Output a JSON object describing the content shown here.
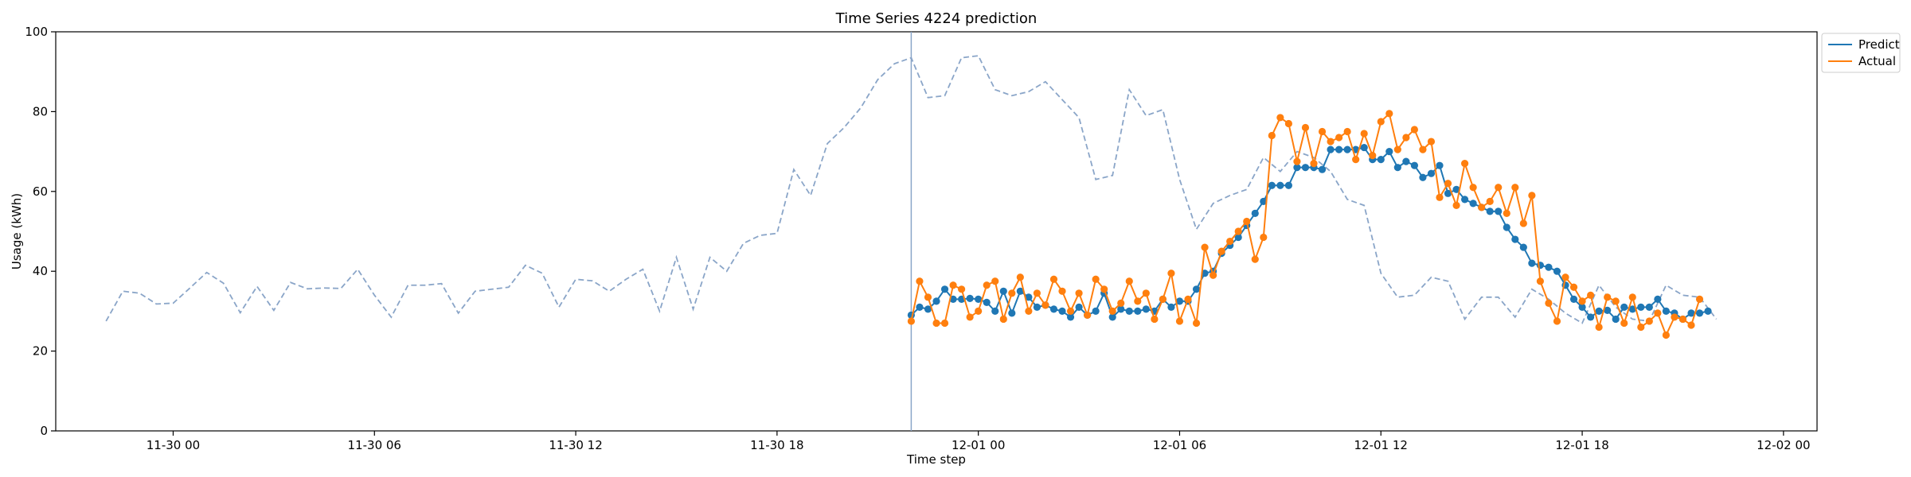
{
  "chart_data": {
    "type": "line",
    "title": "Time Series 4224 prediction",
    "xlabel": "Time step",
    "ylabel": "Usage (kWh)",
    "ylim": [
      0,
      100
    ],
    "yticks": [
      0,
      20,
      40,
      60,
      80,
      100
    ],
    "xlim": [
      "2023-11-29 20:30",
      "2023-12-02 01:00"
    ],
    "xticks": [
      {
        "t": "2023-11-30 00:00",
        "label": "11-30 00"
      },
      {
        "t": "2023-11-30 06:00",
        "label": "11-30 06"
      },
      {
        "t": "2023-11-30 12:00",
        "label": "11-30 12"
      },
      {
        "t": "2023-11-30 18:00",
        "label": "11-30 18"
      },
      {
        "t": "2023-12-01 00:00",
        "label": "12-01 00"
      },
      {
        "t": "2023-12-01 06:00",
        "label": "12-01 06"
      },
      {
        "t": "2023-12-01 12:00",
        "label": "12-01 12"
      },
      {
        "t": "2023-12-01 18:00",
        "label": "12-01 18"
      },
      {
        "t": "2023-12-02 00:00",
        "label": "12-02 00"
      }
    ],
    "grid": false,
    "legend": "top-right",
    "vline_time": "2023-11-30 22:00",
    "history": {
      "start": "2023-11-29 22:00",
      "step_minutes": 30,
      "color": "#8aa5c8",
      "style": "dashed",
      "values": [
        27.5,
        35,
        34.5,
        31.8,
        32,
        35.8,
        39.7,
        37,
        29.6,
        36.2,
        30.2,
        37.2,
        35.6,
        35.8,
        35.7,
        40.5,
        34,
        28.5,
        36.5,
        36.5,
        36.9,
        29.5,
        35,
        35.5,
        36,
        41.5,
        39.5,
        31,
        38,
        37.6,
        35,
        38,
        40.5,
        30,
        43.5,
        30.5,
        43.5,
        40,
        47,
        49,
        49.5,
        65.5,
        59,
        72,
        76,
        81,
        88,
        92,
        93.5,
        83.5,
        84,
        93.5,
        94,
        85.5,
        84,
        85,
        87.5,
        83,
        78.5,
        63,
        64,
        85.5,
        79,
        80.5,
        63,
        50.5,
        57,
        59,
        60.5,
        68.5,
        65,
        70,
        68.5,
        65,
        58,
        56.5,
        39.5,
        33.5,
        34,
        38.5,
        37.5,
        28,
        33.5,
        33.5,
        28.5,
        35.5,
        33,
        29.5,
        27,
        36.5,
        31,
        28,
        27.5,
        36.5,
        34,
        33.5,
        28
      ]
    },
    "series": [
      {
        "name": "Predict",
        "color": "#1f77b4",
        "start": "2023-11-30 22:00",
        "step_minutes": 15,
        "values": [
          29,
          31,
          30.5,
          32.5,
          35.5,
          33,
          33,
          33.2,
          33,
          32.2,
          30,
          35,
          29.5,
          35,
          33.5,
          31,
          31.5,
          30.5,
          30,
          28.5,
          31,
          29,
          30,
          34.5,
          28.5,
          30.5,
          30,
          30,
          30.5,
          30,
          33,
          31,
          32.5,
          32.5,
          35.5,
          39.5,
          40,
          44.5,
          46.5,
          48.5,
          51.5,
          54.5,
          57.5,
          61.5,
          61.5,
          61.5,
          66,
          66,
          66,
          65.5,
          70.5,
          70.5,
          70.5,
          70.5,
          71,
          68,
          68,
          70,
          66,
          67.5,
          66.5,
          63.5,
          64.5,
          66.5,
          59.5,
          60.5,
          58,
          57,
          56,
          55,
          55,
          51,
          48,
          46,
          42,
          41.5,
          41,
          40,
          36.5,
          33,
          31,
          28.5,
          30,
          30.2,
          28,
          31,
          30.5,
          31,
          31,
          33,
          30,
          29.5,
          28,
          29.5,
          29.5,
          30
        ]
      },
      {
        "name": "Actual",
        "color": "#ff7f0e",
        "start": "2023-11-30 22:00",
        "step_minutes": 15,
        "values": [
          27.5,
          37.5,
          33.5,
          27,
          27,
          36.5,
          35.5,
          28.5,
          30,
          36.5,
          37.5,
          28,
          34.5,
          38.5,
          30,
          34.5,
          31.5,
          38,
          35,
          30,
          34.5,
          29,
          38,
          35.5,
          30,
          32,
          37.5,
          32.5,
          34.5,
          28,
          33,
          39.5,
          27.5,
          33,
          27,
          46,
          39,
          45,
          47.5,
          50,
          52.5,
          43,
          48.5,
          74,
          78.5,
          77,
          67.5,
          76,
          67,
          75,
          72.5,
          73.5,
          75,
          68,
          74.5,
          69,
          77.5,
          79.5,
          70.5,
          73.5,
          75.5,
          70.5,
          72.5,
          58.5,
          62,
          56.5,
          67,
          61,
          56,
          57.5,
          61,
          54.5,
          61,
          52,
          59,
          37.5,
          32,
          27.5,
          38.5,
          36,
          32.5,
          34,
          26,
          33.5,
          32.5,
          27,
          33.5,
          26,
          27.5,
          29.5,
          24,
          28.5,
          28,
          26.5,
          33
        ]
      }
    ]
  }
}
